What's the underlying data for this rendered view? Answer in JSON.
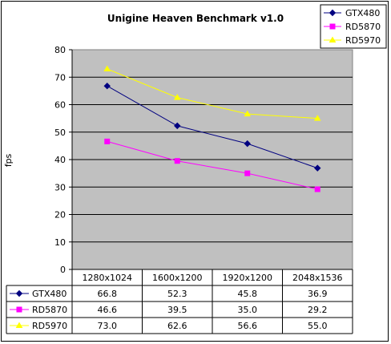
{
  "chart_data": {
    "type": "line",
    "title": "Unigine Heaven Benchmark v1.0",
    "ylabel": "fps",
    "xlabel": "",
    "ylim": [
      0,
      80
    ],
    "ystep": 10,
    "yticks": [
      "0",
      "10",
      "20",
      "30",
      "40",
      "50",
      "60",
      "70",
      "80"
    ],
    "categories": [
      "1280x1024",
      "1600x1200",
      "1920x1200",
      "2048x1536"
    ],
    "grid": true,
    "legend": "top-right",
    "plot_background": "#c0c0c0",
    "series": [
      {
        "name": "GTX480",
        "values": [
          66.8,
          52.3,
          45.8,
          36.9
        ],
        "labels": [
          "66.8",
          "52.3",
          "45.8",
          "36.9"
        ],
        "color": "#000080",
        "marker": "diamond"
      },
      {
        "name": "RD5870",
        "values": [
          46.6,
          39.5,
          35.0,
          29.2
        ],
        "labels": [
          "46.6",
          "39.5",
          "35.0",
          "29.2"
        ],
        "color": "#ff00ff",
        "marker": "square"
      },
      {
        "name": "RD5970",
        "values": [
          73.0,
          62.6,
          56.6,
          55.0
        ],
        "labels": [
          "73.0",
          "62.6",
          "56.6",
          "55.0"
        ],
        "color": "#ffff00",
        "marker": "triangle"
      }
    ]
  }
}
